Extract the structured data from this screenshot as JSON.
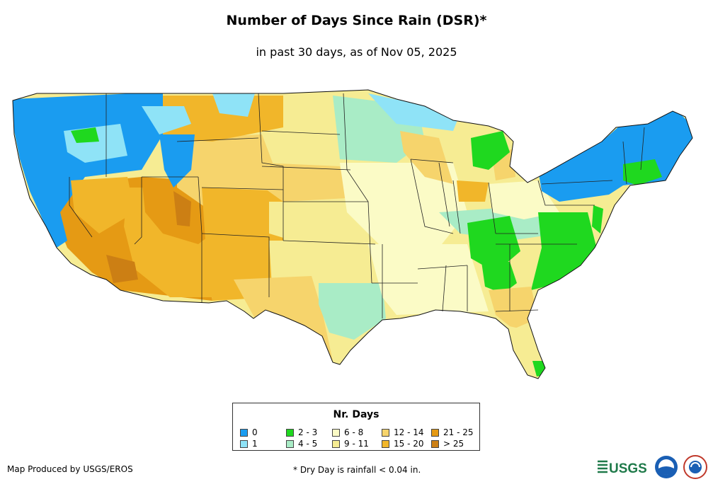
{
  "title": "Number of Days Since Rain (DSR)*",
  "subtitle": "in past 30 days, as of Nov 05, 2025",
  "legend": {
    "title": "Nr. Days",
    "items": [
      {
        "label": "0",
        "color": "#1a9cf0"
      },
      {
        "label": "1",
        "color": "#8fe3f7"
      },
      {
        "label": "2 - 3",
        "color": "#1fd81f"
      },
      {
        "label": "4 - 5",
        "color": "#a9ecc6"
      },
      {
        "label": "6 - 8",
        "color": "#fbfbc6"
      },
      {
        "label": "9 - 11",
        "color": "#f6ec93"
      },
      {
        "label": "12 - 14",
        "color": "#f6d46c"
      },
      {
        "label": "15 - 20",
        "color": "#f1b62a"
      },
      {
        "label": "21 - 25",
        "color": "#e59a14"
      },
      {
        "label": "> 25",
        "color": "#cc7f14"
      }
    ]
  },
  "footer": {
    "produced_by": "Map Produced by USGS/EROS",
    "note": "* Dry Day is rainfall < 0.04 in."
  },
  "logos": {
    "usgs": "USGS"
  }
}
